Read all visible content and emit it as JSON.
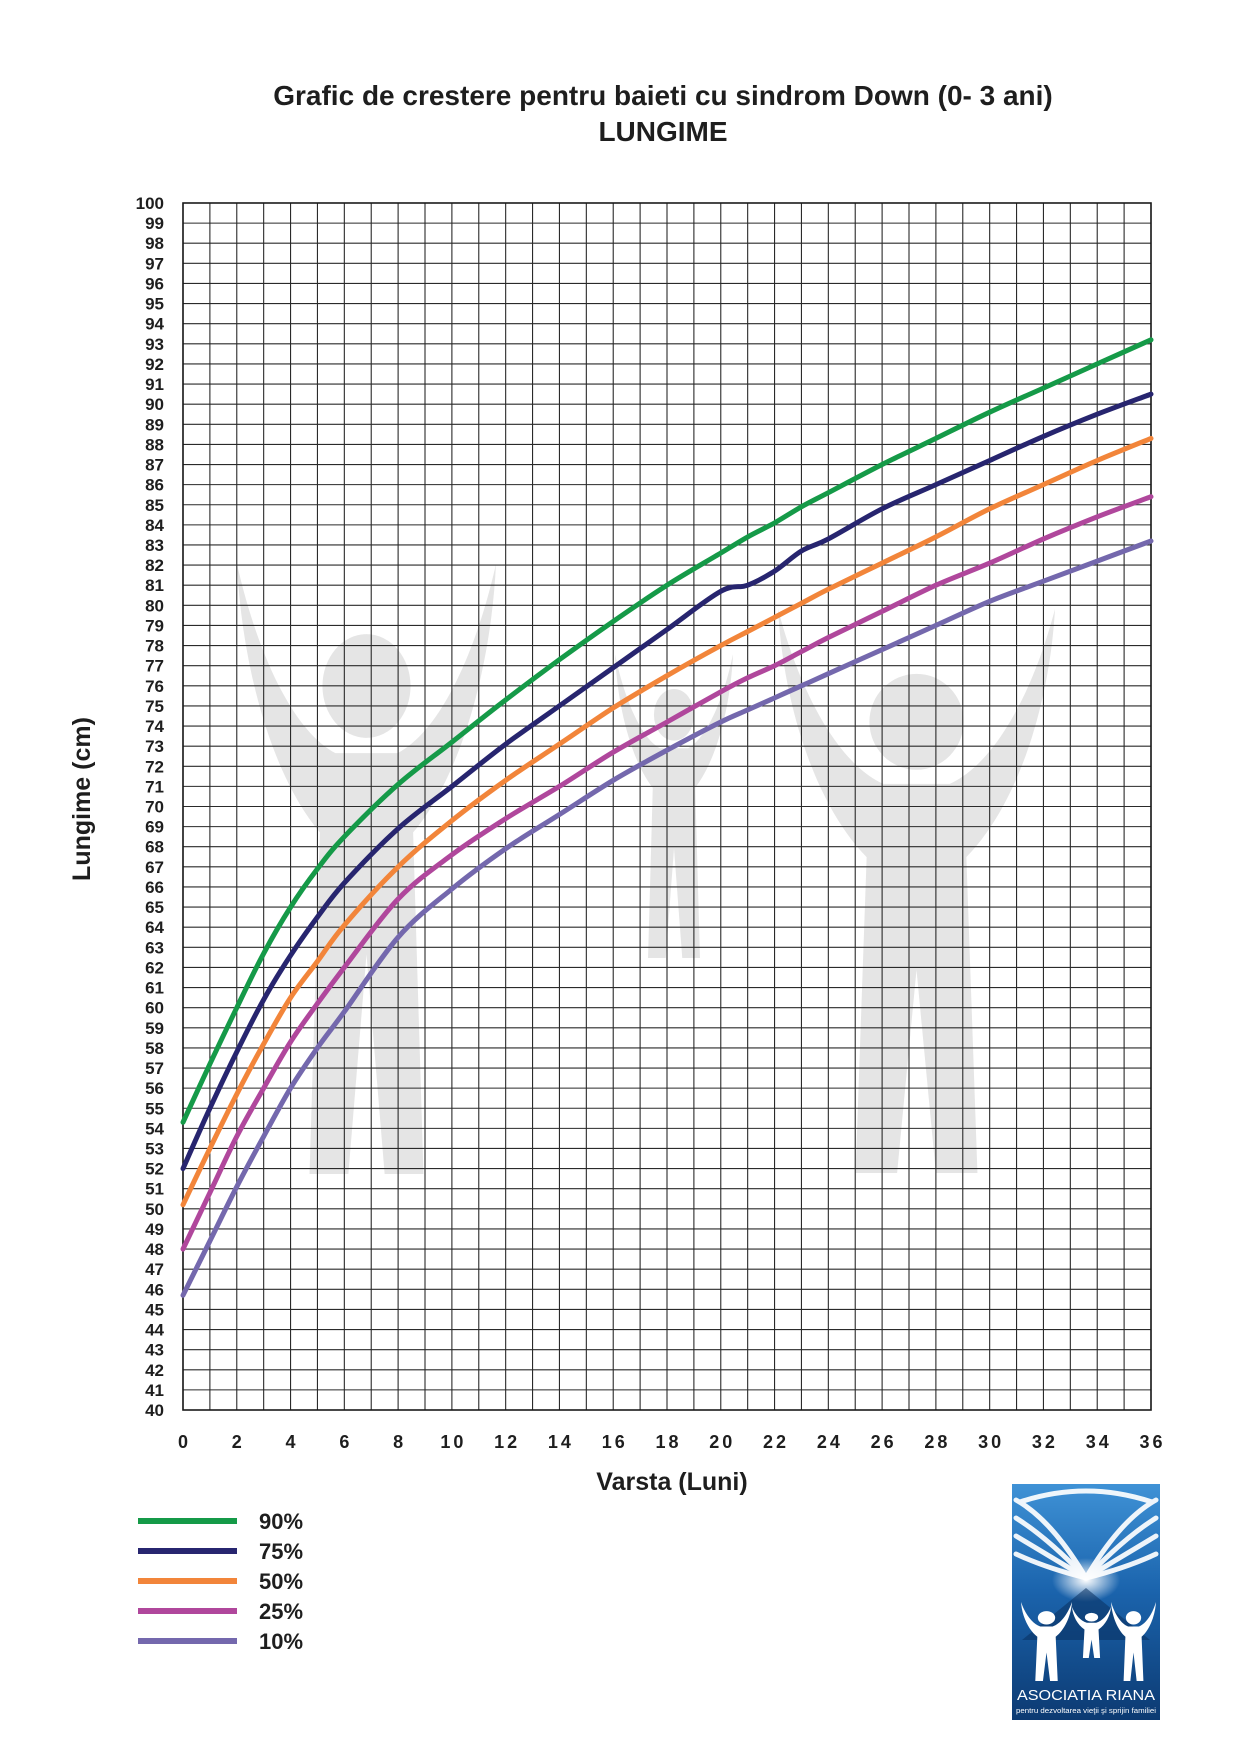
{
  "chart_data": {
    "type": "line",
    "title": "Grafic de crestere pentru baieti cu sindrom Down (0- 3 ani)",
    "subtitle": "LUNGIME",
    "xlabel": "Varsta (Luni)",
    "ylabel": "Lungime (cm)",
    "xlim": [
      0,
      36
    ],
    "ylim": [
      40,
      100
    ],
    "xticks": [
      0,
      2,
      4,
      6,
      8,
      10,
      12,
      14,
      16,
      18,
      20,
      22,
      24,
      26,
      28,
      30,
      32,
      34,
      36
    ],
    "yticks": [
      40,
      41,
      42,
      43,
      44,
      45,
      46,
      47,
      48,
      49,
      50,
      51,
      52,
      53,
      54,
      55,
      56,
      57,
      58,
      59,
      60,
      61,
      62,
      63,
      64,
      65,
      66,
      67,
      68,
      69,
      70,
      71,
      72,
      73,
      74,
      75,
      76,
      77,
      78,
      79,
      80,
      81,
      82,
      83,
      84,
      85,
      86,
      87,
      88,
      89,
      90,
      91,
      92,
      93,
      94,
      95,
      96,
      97,
      98,
      99,
      100
    ],
    "grid": true,
    "grid_step_x": 1,
    "grid_step_y": 1,
    "legend_position": "bottom-left",
    "x": [
      0,
      1,
      2,
      3,
      4,
      5,
      6,
      8,
      10,
      12,
      14,
      16,
      18,
      20,
      21,
      22,
      23,
      24,
      26,
      28,
      30,
      32,
      34,
      36
    ],
    "series": [
      {
        "name": "90%",
        "color": "#159a48",
        "values": [
          54.3,
          57.2,
          60.0,
          62.7,
          65.0,
          66.9,
          68.5,
          71.1,
          73.2,
          75.3,
          77.3,
          79.2,
          81.0,
          82.6,
          83.4,
          84.1,
          84.9,
          85.6,
          87.0,
          88.3,
          89.6,
          90.8,
          92.0,
          93.2
        ]
      },
      {
        "name": "75%",
        "color": "#27256f",
        "values": [
          52.0,
          55.0,
          57.8,
          60.4,
          62.6,
          64.5,
          66.2,
          68.9,
          71.0,
          73.1,
          75.0,
          76.9,
          78.8,
          80.7,
          81.0,
          81.7,
          82.7,
          83.3,
          84.8,
          86.0,
          87.2,
          88.4,
          89.5,
          90.5
        ]
      },
      {
        "name": "50%",
        "color": "#f2853a",
        "values": [
          50.2,
          53.0,
          55.7,
          58.2,
          60.5,
          62.3,
          64.1,
          67.0,
          69.3,
          71.3,
          73.1,
          74.9,
          76.5,
          78.0,
          78.7,
          79.4,
          80.1,
          80.8,
          82.1,
          83.4,
          84.8,
          86.0,
          87.2,
          88.3
        ]
      },
      {
        "name": "25%",
        "color": "#b0479c",
        "values": [
          48.0,
          50.8,
          53.6,
          56.0,
          58.3,
          60.2,
          62.0,
          65.4,
          67.6,
          69.4,
          71.0,
          72.7,
          74.2,
          75.7,
          76.4,
          77.0,
          77.7,
          78.4,
          79.7,
          81.0,
          82.1,
          83.3,
          84.4,
          85.4
        ]
      },
      {
        "name": "10%",
        "color": "#7468ad",
        "values": [
          45.7,
          48.4,
          51.1,
          53.6,
          56.0,
          58.0,
          59.8,
          63.5,
          65.9,
          67.9,
          69.6,
          71.3,
          72.8,
          74.2,
          74.8,
          75.4,
          76.0,
          76.6,
          77.8,
          79.0,
          80.2,
          81.2,
          82.2,
          83.2
        ]
      }
    ]
  },
  "watermark": {
    "icon": "people-silhouettes-icon",
    "color": "#e4e4e4"
  },
  "logo": {
    "icon": "open-book-family-logo-icon",
    "name": "ASOCIATIA RIANA",
    "tagline": "pentru dezvoltarea vieţii şi sprijin familiei",
    "brand_color": "#1b64ad"
  }
}
